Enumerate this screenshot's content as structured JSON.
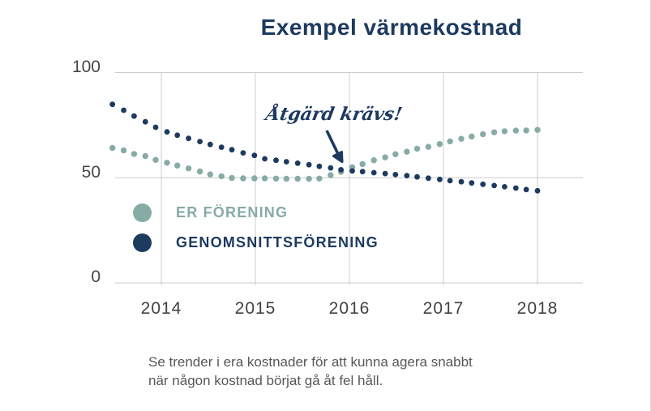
{
  "title": "Exempel värmekostnad",
  "annotation": "Åtgärd krävs!",
  "legend": {
    "items": [
      {
        "label": "ER FÖRENING",
        "color": "#87aba5"
      },
      {
        "label": "GENOMSNITTSFÖRENING",
        "color": "#1d3a5f"
      }
    ]
  },
  "caption": {
    "line1": "Se trender i era kostnader för att kunna agera snabbt",
    "line2": "när någon kostnad börjat gå åt fel håll."
  },
  "colors": {
    "navy": "#1d3a5f",
    "teal": "#87aba5",
    "gridline": "#cccccc",
    "axis_text": "#464649",
    "caption_text": "#57575a"
  },
  "chart_data": {
    "type": "scatter",
    "style": "dotted-line-series",
    "title": "Exempel värmekostnad",
    "xlabel": "",
    "ylabel": "",
    "grid": true,
    "legend_position": "inside-left-middle",
    "xticks": [
      2014,
      2015,
      2016,
      2017,
      2018
    ],
    "yticks": [
      0,
      50,
      100
    ],
    "ylim": [
      0,
      100
    ],
    "xlim": [
      2013.4,
      2018.5
    ],
    "x": [
      2013.48,
      2013.6,
      2013.71,
      2013.83,
      2013.94,
      2014.06,
      2014.17,
      2014.29,
      2014.41,
      2014.52,
      2014.64,
      2014.75,
      2014.87,
      2014.99,
      2015.1,
      2015.22,
      2015.33,
      2015.45,
      2015.57,
      2015.68,
      2015.8,
      2015.91,
      2016.03,
      2016.14,
      2016.26,
      2016.38,
      2016.49,
      2016.61,
      2016.72,
      2016.84,
      2016.96,
      2017.07,
      2017.19,
      2017.3,
      2017.42,
      2017.54,
      2017.65,
      2017.77,
      2017.88,
      2018.0
    ],
    "series": [
      {
        "name": "ER FÖRENING",
        "color": "#87aba5",
        "dot_radius": 3.7,
        "values": [
          64.2,
          63.0,
          61.3,
          60.3,
          58.5,
          57.1,
          55.8,
          54.4,
          53.0,
          51.6,
          50.7,
          49.9,
          49.7,
          49.7,
          49.7,
          49.6,
          49.5,
          49.5,
          49.5,
          49.6,
          51.2,
          52.8,
          55.0,
          56.5,
          58.3,
          59.7,
          61.2,
          62.4,
          63.8,
          64.7,
          66.0,
          67.3,
          68.5,
          69.6,
          70.7,
          71.6,
          72.1,
          72.4,
          72.5,
          72.7
        ]
      },
      {
        "name": "GENOMSNITTSFÖRENING",
        "color": "#1d3a5f",
        "dot_radius": 3.4,
        "values": [
          84.9,
          82.1,
          79.3,
          76.6,
          74.0,
          71.8,
          70.2,
          68.7,
          67.2,
          65.8,
          64.5,
          63.3,
          61.8,
          60.6,
          59.0,
          58.3,
          57.6,
          56.9,
          56.2,
          55.4,
          54.7,
          53.8,
          53.2,
          52.9,
          52.4,
          52.0,
          51.5,
          51.0,
          50.4,
          49.8,
          49.2,
          48.6,
          48.1,
          47.5,
          46.9,
          46.3,
          45.7,
          45.1,
          44.4,
          43.8
        ]
      }
    ],
    "annotation": {
      "text": "Åtgärd krävs!",
      "arrow_target": {
        "x": 2016.03,
        "y": 53.2
      }
    }
  }
}
